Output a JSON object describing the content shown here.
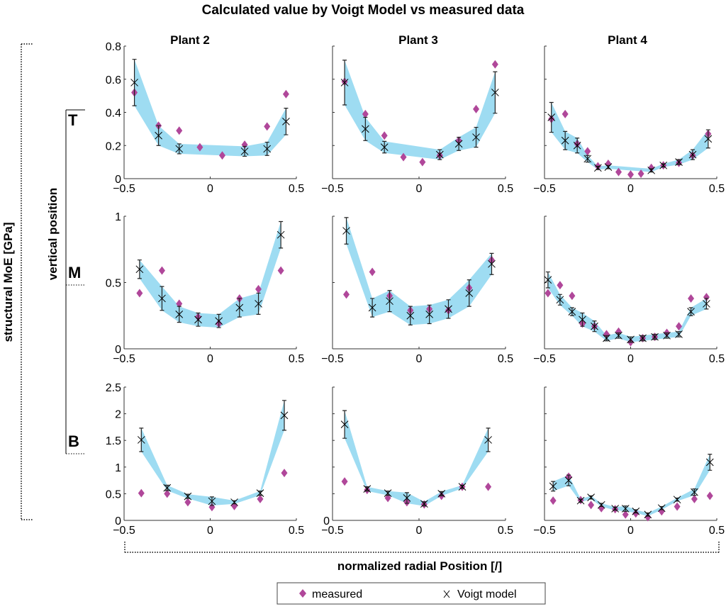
{
  "title": "Calculated value by Voigt Model vs  measured data",
  "ylabel_outer": "structural MoE [GPa]",
  "ylabel_inner": "vertical position",
  "xlabel": "normalized radial Position [/]",
  "row_labels": [
    "T",
    "M",
    "B"
  ],
  "column_titles": [
    "Plant 2",
    "Plant 3",
    "Plant 4"
  ],
  "legend": {
    "measured": "measured",
    "voigt": "Voigt model"
  },
  "colors": {
    "measured": "#b0479a",
    "band": "#9edcf2",
    "voigt": "#000000"
  },
  "chart_data": [
    {
      "type": "scatter",
      "plant": "Plant 2",
      "row": "T",
      "xlim": [
        -0.5,
        0.5
      ],
      "xticks": [
        -0.5,
        0,
        0.5
      ],
      "ylim": [
        0,
        0.8
      ],
      "yticks": [
        0,
        0.2,
        0.4,
        0.6,
        0.8
      ],
      "ytick_labels": true,
      "voigt": [
        [
          -0.44,
          0.58,
          0.14
        ],
        [
          -0.3,
          0.26,
          0.06
        ],
        [
          -0.18,
          0.18,
          0.03
        ],
        [
          0.2,
          0.165,
          0.03
        ],
        [
          0.33,
          0.18,
          0.04
        ],
        [
          0.44,
          0.345,
          0.08
        ]
      ],
      "measured": [
        [
          -0.44,
          0.52
        ],
        [
          -0.3,
          0.32
        ],
        [
          -0.18,
          0.29
        ],
        [
          -0.06,
          0.19
        ],
        [
          0.07,
          0.14
        ],
        [
          0.2,
          0.205
        ],
        [
          0.33,
          0.315
        ],
        [
          0.44,
          0.51
        ]
      ]
    },
    {
      "type": "scatter",
      "plant": "Plant 3",
      "row": "T",
      "xlim": [
        -0.5,
        0.5
      ],
      "xticks": [
        -0.5,
        0,
        0.5
      ],
      "ylim": [
        0,
        0.8
      ],
      "yticks": [
        0,
        0.2,
        0.4,
        0.6,
        0.8
      ],
      "ytick_labels": false,
      "voigt": [
        [
          -0.43,
          0.58,
          0.135
        ],
        [
          -0.31,
          0.3,
          0.07
        ],
        [
          -0.2,
          0.19,
          0.035
        ],
        [
          0.12,
          0.145,
          0.03
        ],
        [
          0.23,
          0.21,
          0.04
        ],
        [
          0.33,
          0.25,
          0.06
        ],
        [
          0.44,
          0.52,
          0.125
        ]
      ],
      "measured": [
        [
          -0.43,
          0.585
        ],
        [
          -0.31,
          0.39
        ],
        [
          -0.2,
          0.26
        ],
        [
          -0.09,
          0.13
        ],
        [
          0.02,
          0.1
        ],
        [
          0.12,
          0.14
        ],
        [
          0.23,
          0.23
        ],
        [
          0.33,
          0.42
        ],
        [
          0.44,
          0.69
        ]
      ]
    },
    {
      "type": "scatter",
      "plant": "Plant 4",
      "row": "T",
      "xlim": [
        -0.5,
        0.5
      ],
      "xticks": [
        -0.5,
        0,
        0.5
      ],
      "ylim": [
        0,
        0.8
      ],
      "yticks": [
        0,
        0.2,
        0.4,
        0.6,
        0.8
      ],
      "ytick_labels": false,
      "voigt": [
        [
          -0.46,
          0.37,
          0.09
        ],
        [
          -0.38,
          0.23,
          0.055
        ],
        [
          -0.31,
          0.2,
          0.045
        ],
        [
          -0.25,
          0.12,
          0.02
        ],
        [
          -0.19,
          0.065,
          0.01
        ],
        [
          -0.13,
          0.07,
          0.01
        ],
        [
          0.12,
          0.05,
          0.01
        ],
        [
          0.19,
          0.08,
          0.01
        ],
        [
          0.28,
          0.1,
          0.015
        ],
        [
          0.36,
          0.145,
          0.03
        ],
        [
          0.45,
          0.24,
          0.055
        ]
      ],
      "measured": [
        [
          -0.46,
          0.36
        ],
        [
          -0.38,
          0.39
        ],
        [
          -0.31,
          0.21
        ],
        [
          -0.25,
          0.165
        ],
        [
          -0.19,
          0.075
        ],
        [
          -0.13,
          0.09
        ],
        [
          -0.07,
          0.04
        ],
        [
          0.0,
          0.025
        ],
        [
          0.06,
          0.03
        ],
        [
          0.12,
          0.065
        ],
        [
          0.19,
          0.08
        ],
        [
          0.28,
          0.095
        ],
        [
          0.36,
          0.14
        ],
        [
          0.45,
          0.27
        ]
      ]
    },
    {
      "type": "scatter",
      "plant": "Plant 2",
      "row": "M",
      "xlim": [
        -0.5,
        0.5
      ],
      "xticks": [
        -0.5,
        0,
        0.5
      ],
      "ylim": [
        0,
        1
      ],
      "yticks": [
        0,
        0.5,
        1
      ],
      "ytick_labels": true,
      "voigt": [
        [
          -0.41,
          0.6,
          0.07
        ],
        [
          -0.28,
          0.38,
          0.09
        ],
        [
          -0.18,
          0.26,
          0.06
        ],
        [
          -0.07,
          0.22,
          0.05
        ],
        [
          0.05,
          0.21,
          0.05
        ],
        [
          0.17,
          0.31,
          0.07
        ],
        [
          0.28,
          0.34,
          0.08
        ],
        [
          0.41,
          0.86,
          0.1
        ]
      ],
      "measured": [
        [
          -0.41,
          0.42
        ],
        [
          -0.28,
          0.59
        ],
        [
          -0.18,
          0.34
        ],
        [
          -0.07,
          0.24
        ],
        [
          0.05,
          0.19
        ],
        [
          0.17,
          0.38
        ],
        [
          0.28,
          0.45
        ],
        [
          0.41,
          0.59
        ]
      ]
    },
    {
      "type": "scatter",
      "plant": "Plant 3",
      "row": "M",
      "xlim": [
        -0.5,
        0.5
      ],
      "xticks": [
        -0.5,
        0,
        0.5
      ],
      "ylim": [
        0,
        1
      ],
      "yticks": [
        0,
        0.5,
        1
      ],
      "ytick_labels": false,
      "voigt": [
        [
          -0.42,
          0.89,
          0.1
        ],
        [
          -0.27,
          0.31,
          0.07
        ],
        [
          -0.17,
          0.36,
          0.08
        ],
        [
          -0.05,
          0.25,
          0.07
        ],
        [
          0.06,
          0.26,
          0.07
        ],
        [
          0.17,
          0.3,
          0.07
        ],
        [
          0.29,
          0.42,
          0.1
        ],
        [
          0.42,
          0.64,
          0.08
        ]
      ],
      "measured": [
        [
          -0.42,
          0.41
        ],
        [
          -0.27,
          0.58
        ],
        [
          -0.17,
          0.4
        ],
        [
          -0.05,
          0.29
        ],
        [
          0.06,
          0.3
        ],
        [
          0.17,
          0.29
        ],
        [
          0.29,
          0.46
        ],
        [
          0.42,
          0.67
        ]
      ]
    },
    {
      "type": "scatter",
      "plant": "Plant 4",
      "row": "M",
      "xlim": [
        -0.5,
        0.5
      ],
      "xticks": [
        -0.5,
        0,
        0.5
      ],
      "ylim": [
        0,
        1
      ],
      "yticks": [
        0,
        0.5,
        1
      ],
      "ytick_labels": false,
      "voigt": [
        [
          -0.48,
          0.52,
          0.06
        ],
        [
          -0.41,
          0.37,
          0.04
        ],
        [
          -0.34,
          0.28,
          0.03
        ],
        [
          -0.28,
          0.22,
          0.05
        ],
        [
          -0.21,
          0.17,
          0.04
        ],
        [
          -0.14,
          0.08,
          0.02
        ],
        [
          -0.07,
          0.1,
          0.02
        ],
        [
          0.0,
          0.07,
          0.02
        ],
        [
          0.07,
          0.08,
          0.02
        ],
        [
          0.14,
          0.09,
          0.02
        ],
        [
          0.21,
          0.1,
          0.02
        ],
        [
          0.28,
          0.11,
          0.02
        ],
        [
          0.35,
          0.28,
          0.03
        ],
        [
          0.44,
          0.34,
          0.04
        ]
      ],
      "measured": [
        [
          -0.48,
          0.42
        ],
        [
          -0.41,
          0.48
        ],
        [
          -0.34,
          0.4
        ],
        [
          -0.28,
          0.19
        ],
        [
          -0.21,
          0.17
        ],
        [
          -0.14,
          0.11
        ],
        [
          -0.07,
          0.13
        ],
        [
          0.0,
          0.05
        ],
        [
          0.07,
          0.08
        ],
        [
          0.14,
          0.09
        ],
        [
          0.21,
          0.12
        ],
        [
          0.28,
          0.17
        ],
        [
          0.35,
          0.38
        ],
        [
          0.44,
          0.39
        ]
      ]
    },
    {
      "type": "scatter",
      "plant": "Plant 2",
      "row": "B",
      "xlim": [
        -0.5,
        0.5
      ],
      "xticks": [
        -0.5,
        0,
        0.5
      ],
      "ylim": [
        0,
        2.5
      ],
      "yticks": [
        0,
        0.5,
        1,
        1.5,
        2,
        2.5
      ],
      "ytick_labels": true,
      "voigt": [
        [
          -0.4,
          1.51,
          0.22
        ],
        [
          -0.25,
          0.61,
          0.05
        ],
        [
          -0.13,
          0.45,
          0.04
        ],
        [
          0.01,
          0.36,
          0.08
        ],
        [
          0.14,
          0.34,
          0.03
        ],
        [
          0.29,
          0.51,
          0.04
        ],
        [
          0.43,
          1.97,
          0.28
        ]
      ],
      "measured": [
        [
          -0.4,
          0.51
        ],
        [
          -0.25,
          0.5
        ],
        [
          -0.13,
          0.34
        ],
        [
          0.01,
          0.25
        ],
        [
          0.14,
          0.27
        ],
        [
          0.29,
          0.4
        ],
        [
          0.43,
          0.89
        ]
      ]
    },
    {
      "type": "scatter",
      "plant": "Plant 3",
      "row": "B",
      "xlim": [
        -0.5,
        0.5
      ],
      "xticks": [
        -0.5,
        0,
        0.5
      ],
      "ylim": [
        0,
        2.5
      ],
      "yticks": [
        0,
        0.5,
        1,
        1.5,
        2,
        2.5
      ],
      "ytick_labels": false,
      "ytick_zero_label": true,
      "voigt": [
        [
          -0.43,
          1.8,
          0.26
        ],
        [
          -0.3,
          0.59,
          0.04
        ],
        [
          -0.18,
          0.51,
          0.04
        ],
        [
          -0.07,
          0.42,
          0.1
        ],
        [
          0.03,
          0.31,
          0.04
        ],
        [
          0.13,
          0.5,
          0.04
        ],
        [
          0.25,
          0.63,
          0.03
        ],
        [
          0.4,
          1.51,
          0.22
        ]
      ],
      "measured": [
        [
          -0.43,
          0.73
        ],
        [
          -0.3,
          0.57
        ],
        [
          -0.18,
          0.42
        ],
        [
          -0.07,
          0.34
        ],
        [
          0.03,
          0.3
        ],
        [
          0.13,
          0.46
        ],
        [
          0.25,
          0.63
        ],
        [
          0.4,
          0.63
        ]
      ]
    },
    {
      "type": "scatter",
      "plant": "Plant 4",
      "row": "B",
      "xlim": [
        -0.5,
        0.5
      ],
      "xticks": [
        -0.5,
        0,
        0.5
      ],
      "ylim": [
        0,
        2.5
      ],
      "yticks": [
        0,
        0.5,
        1,
        1.5,
        2,
        2.5
      ],
      "ytick_labels": false,
      "voigt": [
        [
          -0.45,
          0.64,
          0.09
        ],
        [
          -0.36,
          0.75,
          0.1
        ],
        [
          -0.29,
          0.37,
          0.03
        ],
        [
          -0.23,
          0.43,
          0.03
        ],
        [
          -0.17,
          0.29,
          0.03
        ],
        [
          -0.09,
          0.22,
          0.03
        ],
        [
          -0.03,
          0.22,
          0.05
        ],
        [
          0.03,
          0.17,
          0.03
        ],
        [
          0.1,
          0.11,
          0.03
        ],
        [
          0.18,
          0.23,
          0.03
        ],
        [
          0.27,
          0.39,
          0.03
        ],
        [
          0.37,
          0.53,
          0.06
        ],
        [
          0.46,
          1.09,
          0.15
        ]
      ],
      "measured": [
        [
          -0.45,
          0.37
        ],
        [
          -0.36,
          0.82
        ],
        [
          -0.29,
          0.38
        ],
        [
          -0.23,
          0.29
        ],
        [
          -0.17,
          0.23
        ],
        [
          -0.09,
          0.21
        ],
        [
          -0.03,
          0.11
        ],
        [
          0.03,
          0.13
        ],
        [
          0.1,
          0.06
        ],
        [
          0.18,
          0.17
        ],
        [
          0.27,
          0.26
        ],
        [
          0.37,
          0.4
        ],
        [
          0.46,
          0.46
        ]
      ]
    }
  ]
}
